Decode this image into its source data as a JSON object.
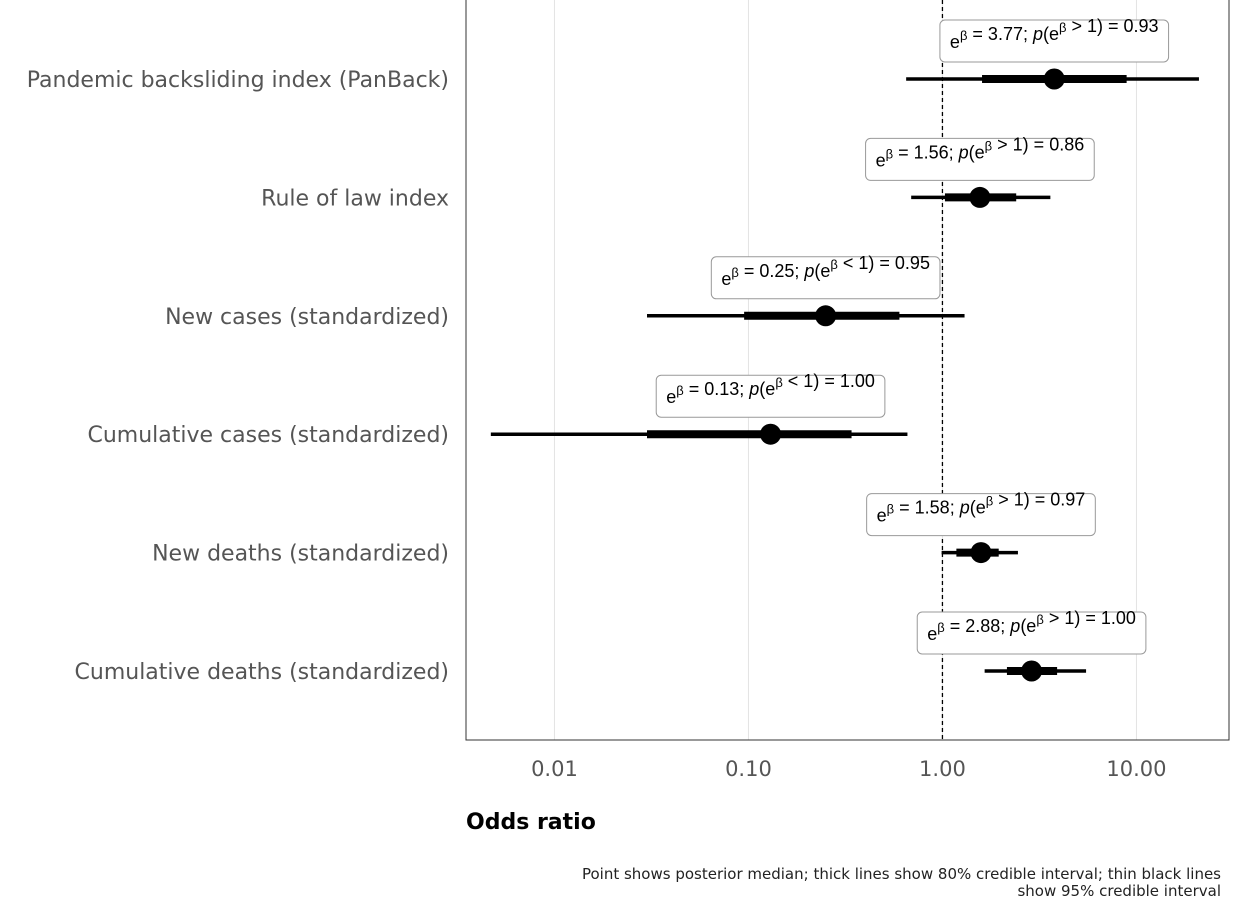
{
  "chart_data": {
    "type": "forest",
    "xlabel": "Odds ratio",
    "xscale": "log10",
    "xlim": [
      0.0035,
      30
    ],
    "xticks": [
      0.01,
      0.1,
      1,
      10
    ],
    "xtick_labels": [
      "0.01",
      "0.10",
      "1.00",
      "10.00"
    ],
    "reference_line": 1,
    "grid": "vertical",
    "caption": "Point shows posterior median; thick lines show 80% credible interval; thin black lines show 95% credible interval",
    "rows": [
      {
        "label": "Pandemic backsliding index (PanBack)",
        "median": 3.77,
        "ci80": [
          1.6,
          8.9
        ],
        "ci95": [
          0.65,
          21
        ],
        "annotation": {
          "value": "3.77",
          "direction": ">",
          "prob": "0.93"
        }
      },
      {
        "label": "Rule of law index",
        "median": 1.56,
        "ci80": [
          1.03,
          2.4
        ],
        "ci95": [
          0.69,
          3.6
        ],
        "annotation": {
          "value": "1.56",
          "direction": ">",
          "prob": "0.86"
        }
      },
      {
        "label": "New cases (standardized)",
        "median": 0.25,
        "ci80": [
          0.095,
          0.6
        ],
        "ci95": [
          0.03,
          1.3
        ],
        "annotation": {
          "value": "0.25",
          "direction": "<",
          "prob": "0.95"
        }
      },
      {
        "label": "Cumulative cases (standardized)",
        "median": 0.13,
        "ci80": [
          0.03,
          0.34
        ],
        "ci95": [
          0.0047,
          0.66
        ],
        "annotation": {
          "value": "0.13",
          "direction": "<",
          "prob": "1.00"
        }
      },
      {
        "label": "New deaths (standardized)",
        "median": 1.58,
        "ci80": [
          1.18,
          1.95
        ],
        "ci95": [
          0.99,
          2.45
        ],
        "annotation": {
          "value": "1.58",
          "direction": ">",
          "prob": "0.97"
        }
      },
      {
        "label": "Cumulative deaths (standardized)",
        "median": 2.88,
        "ci80": [
          2.15,
          3.9
        ],
        "ci95": [
          1.65,
          5.5
        ],
        "annotation": {
          "value": "2.88",
          "direction": ">",
          "prob": "1.00"
        }
      }
    ]
  }
}
